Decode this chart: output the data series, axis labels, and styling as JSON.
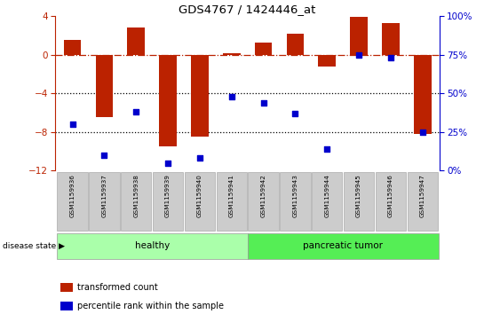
{
  "title": "GDS4767 / 1424446_at",
  "samples": [
    "GSM1159936",
    "GSM1159937",
    "GSM1159938",
    "GSM1159939",
    "GSM1159940",
    "GSM1159941",
    "GSM1159942",
    "GSM1159943",
    "GSM1159944",
    "GSM1159945",
    "GSM1159946",
    "GSM1159947"
  ],
  "bar_values": [
    1.5,
    -6.5,
    2.8,
    -9.5,
    -8.5,
    0.2,
    1.3,
    2.2,
    -1.2,
    3.9,
    3.3,
    -8.2
  ],
  "dot_values_pct": [
    30,
    10,
    38,
    5,
    8,
    48,
    44,
    37,
    14,
    75,
    73,
    25
  ],
  "bar_color": "#BB2200",
  "dot_color": "#0000CC",
  "ylim": [
    -12,
    4
  ],
  "yticks": [
    4,
    0,
    -4,
    -8,
    -12
  ],
  "y2ticks": [
    100,
    75,
    50,
    25,
    0
  ],
  "dotted_lines": [
    -4,
    -8
  ],
  "group_labels": [
    "healthy",
    "pancreatic tumor"
  ],
  "group_ranges": [
    [
      0,
      5
    ],
    [
      6,
      11
    ]
  ],
  "group_color_healthy": "#AAFFAA",
  "group_color_tumor": "#55EE55",
  "bar_width": 0.55,
  "legend_items": [
    "transformed count",
    "percentile rank within the sample"
  ],
  "legend_colors": [
    "#BB2200",
    "#0000CC"
  ],
  "disease_label": "disease state"
}
